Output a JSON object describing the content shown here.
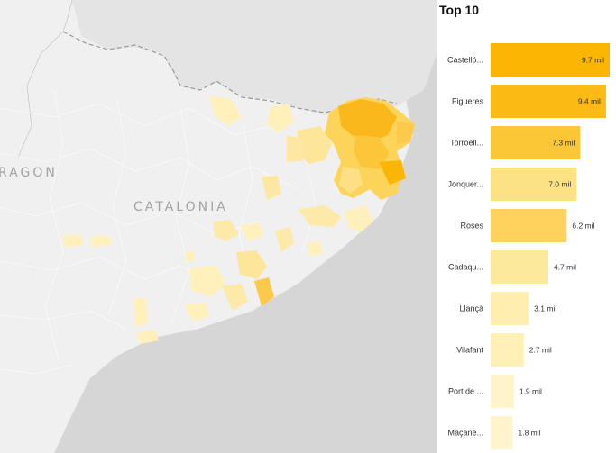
{
  "map": {
    "label_catalonia": "CATALONIA",
    "label_aragon": "RAGON"
  },
  "chart_data": {
    "type": "bar",
    "orientation": "horizontal",
    "title": "Top 10",
    "categories": [
      "Castelló...",
      "Figueres",
      "Torroell...",
      "Jonquer...",
      "Roses",
      "Cadaqu...",
      "Llançà",
      "Vilafant",
      "Port de ...",
      "Maçane..."
    ],
    "values": [
      9.7,
      9.4,
      7.3,
      7.0,
      6.2,
      4.7,
      3.1,
      2.7,
      1.9,
      1.8
    ],
    "value_labels": [
      "9.7 mil",
      "9.4 mil",
      "7.3 mil",
      "7.0 mil",
      "6.2 mil",
      "4.7 mil",
      "3.1 mil",
      "2.7 mil",
      "1.9 mil",
      "1.8 mil"
    ],
    "colors": [
      "#fbb603",
      "#fbba14",
      "#fcc737",
      "#fde285",
      "#fdd35e",
      "#fde99c",
      "#feeeb0",
      "#fef0b6",
      "#fff4c9",
      "#fff4cc"
    ],
    "xlim": [
      0,
      9.7
    ],
    "grid": false,
    "legend": "none"
  }
}
